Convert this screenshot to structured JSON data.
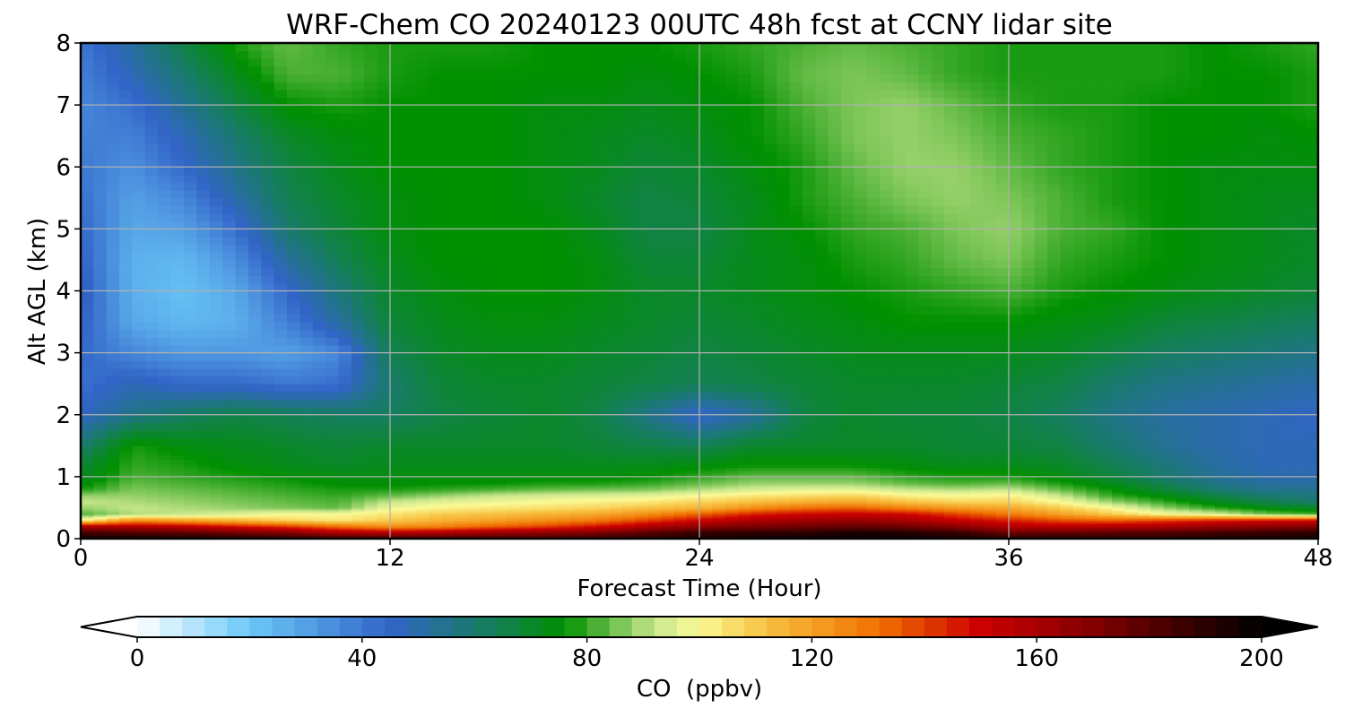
{
  "chart_data": {
    "type": "heatmap",
    "plot_kind": "filled-contour",
    "title": "WRF-Chem CO  20240123 00UTC 48h fcst at CCNY lidar site",
    "xlabel": "Forecast Time (Hour)",
    "ylabel": "Alt AGL (km)",
    "xlim": [
      0,
      48
    ],
    "ylim": [
      0,
      8
    ],
    "xticks": [
      0,
      12,
      24,
      36,
      48
    ],
    "yticks": [
      0,
      1,
      2,
      3,
      4,
      5,
      6,
      7,
      8
    ],
    "grid": true,
    "colorbar": {
      "label": "CO  (ppbv)",
      "orientation": "horizontal",
      "min": 0,
      "max": 200,
      "ticks": [
        0,
        40,
        80,
        120,
        160,
        200
      ],
      "extend": "both",
      "stops": [
        {
          "v": 0,
          "c": "#ffffff"
        },
        {
          "v": 20,
          "c": "#6ac8f8"
        },
        {
          "v": 45,
          "c": "#3264c8"
        },
        {
          "v": 60,
          "c": "#1a7a6e"
        },
        {
          "v": 76,
          "c": "#009000"
        },
        {
          "v": 92,
          "c": "#c8e68c"
        },
        {
          "v": 100,
          "c": "#fafa96"
        },
        {
          "v": 112,
          "c": "#f8c040"
        },
        {
          "v": 132,
          "c": "#f07000"
        },
        {
          "v": 150,
          "c": "#cc0000"
        },
        {
          "v": 170,
          "c": "#820000"
        },
        {
          "v": 200,
          "c": "#000000"
        }
      ]
    },
    "x": [
      0,
      2,
      4,
      6,
      8,
      10,
      12,
      14,
      16,
      18,
      20,
      22,
      24,
      26,
      28,
      30,
      32,
      34,
      36,
      38,
      40,
      42,
      44,
      46,
      48
    ],
    "y": [
      0,
      0.1,
      0.2,
      0.3,
      0.4,
      0.5,
      0.6,
      0.7,
      0.8,
      0.9,
      1.0,
      1.2,
      1.5,
      2.0,
      2.5,
      3.0,
      3.5,
      4.0,
      4.5,
      5.0,
      5.5,
      6.0,
      6.5,
      7.0,
      7.5,
      8.0
    ],
    "values": [
      [
        198,
        198,
        196,
        195,
        193,
        190,
        188,
        186,
        186,
        186,
        188,
        192,
        194,
        196,
        198,
        199,
        198,
        196,
        194,
        193,
        192,
        193,
        194,
        195,
        196
      ],
      [
        185,
        182,
        180,
        175,
        170,
        160,
        158,
        160,
        165,
        168,
        172,
        180,
        188,
        190,
        190,
        195,
        192,
        188,
        176,
        178,
        180,
        182,
        185,
        188,
        190
      ],
      [
        160,
        158,
        155,
        148,
        142,
        132,
        125,
        128,
        135,
        140,
        148,
        158,
        168,
        172,
        175,
        178,
        175,
        168,
        158,
        155,
        158,
        160,
        165,
        168,
        170
      ],
      [
        100,
        125,
        120,
        115,
        108,
        104,
        110,
        116,
        120,
        125,
        130,
        140,
        150,
        158,
        162,
        165,
        160,
        152,
        145,
        138,
        135,
        140,
        145,
        148,
        150
      ],
      [
        82,
        90,
        92,
        95,
        100,
        100,
        105,
        110,
        112,
        115,
        118,
        125,
        135,
        145,
        150,
        152,
        150,
        140,
        130,
        120,
        110,
        100,
        95,
        85,
        82
      ],
      [
        88,
        92,
        90,
        88,
        86,
        84,
        98,
        102,
        104,
        106,
        108,
        112,
        115,
        125,
        132,
        135,
        128,
        122,
        118,
        110,
        100,
        88,
        80,
        74,
        70
      ],
      [
        92,
        90,
        88,
        86,
        84,
        82,
        92,
        96,
        98,
        100,
        102,
        104,
        108,
        112,
        116,
        118,
        112,
        108,
        108,
        100,
        88,
        80,
        72,
        65,
        60
      ],
      [
        88,
        88,
        86,
        84,
        82,
        80,
        84,
        88,
        92,
        94,
        95,
        96,
        100,
        104,
        106,
        108,
        102,
        100,
        102,
        92,
        80,
        74,
        66,
        60,
        58
      ],
      [
        78,
        86,
        84,
        82,
        80,
        78,
        78,
        80,
        82,
        84,
        85,
        86,
        90,
        94,
        96,
        96,
        92,
        90,
        92,
        84,
        76,
        68,
        60,
        55,
        55
      ],
      [
        74,
        84,
        82,
        80,
        78,
        75,
        75,
        76,
        76,
        78,
        78,
        80,
        84,
        88,
        88,
        88,
        84,
        82,
        84,
        78,
        72,
        64,
        56,
        52,
        52
      ],
      [
        70,
        82,
        80,
        78,
        76,
        74,
        74,
        74,
        74,
        75,
        75,
        76,
        80,
        84,
        84,
        84,
        80,
        78,
        78,
        74,
        68,
        60,
        54,
        50,
        50
      ],
      [
        68,
        80,
        78,
        74,
        72,
        70,
        72,
        72,
        72,
        72,
        72,
        72,
        74,
        76,
        76,
        76,
        74,
        72,
        72,
        70,
        64,
        58,
        52,
        48,
        48
      ],
      [
        60,
        78,
        74,
        72,
        70,
        68,
        70,
        70,
        70,
        70,
        68,
        66,
        64,
        70,
        70,
        70,
        70,
        68,
        68,
        66,
        60,
        54,
        50,
        48,
        48
      ],
      [
        46,
        56,
        62,
        66,
        64,
        62,
        62,
        66,
        68,
        70,
        66,
        56,
        44,
        52,
        66,
        70,
        68,
        68,
        66,
        62,
        56,
        52,
        50,
        48,
        46
      ],
      [
        42,
        48,
        44,
        44,
        40,
        42,
        60,
        68,
        70,
        70,
        68,
        66,
        64,
        66,
        68,
        70,
        70,
        70,
        68,
        66,
        60,
        56,
        54,
        52,
        50
      ],
      [
        44,
        36,
        32,
        32,
        30,
        36,
        64,
        70,
        72,
        72,
        70,
        68,
        66,
        68,
        70,
        72,
        72,
        72,
        72,
        70,
        66,
        62,
        60,
        58,
        56
      ],
      [
        46,
        28,
        24,
        26,
        38,
        52,
        68,
        72,
        74,
        74,
        72,
        70,
        68,
        70,
        72,
        74,
        76,
        76,
        76,
        74,
        72,
        68,
        66,
        64,
        62
      ],
      [
        48,
        26,
        22,
        28,
        44,
        58,
        70,
        74,
        76,
        76,
        74,
        70,
        70,
        72,
        74,
        76,
        78,
        80,
        82,
        78,
        76,
        74,
        72,
        70,
        68
      ],
      [
        46,
        26,
        24,
        34,
        52,
        64,
        72,
        76,
        76,
        76,
        74,
        68,
        68,
        72,
        74,
        78,
        80,
        84,
        86,
        80,
        78,
        76,
        74,
        72,
        70
      ],
      [
        44,
        28,
        30,
        42,
        60,
        68,
        74,
        76,
        76,
        76,
        72,
        66,
        66,
        72,
        76,
        80,
        82,
        86,
        88,
        82,
        80,
        76,
        74,
        72,
        70
      ],
      [
        42,
        30,
        36,
        50,
        64,
        70,
        74,
        76,
        76,
        74,
        70,
        66,
        68,
        72,
        78,
        82,
        86,
        88,
        86,
        82,
        78,
        76,
        74,
        72,
        72
      ],
      [
        40,
        34,
        44,
        56,
        66,
        72,
        76,
        76,
        76,
        74,
        72,
        68,
        70,
        74,
        78,
        84,
        88,
        88,
        84,
        80,
        78,
        76,
        74,
        74,
        74
      ],
      [
        38,
        38,
        48,
        60,
        70,
        74,
        76,
        76,
        76,
        74,
        72,
        70,
        72,
        76,
        80,
        86,
        88,
        86,
        82,
        80,
        78,
        76,
        76,
        74,
        76
      ],
      [
        36,
        42,
        54,
        66,
        76,
        78,
        76,
        76,
        76,
        74,
        74,
        72,
        74,
        76,
        82,
        86,
        88,
        84,
        80,
        78,
        78,
        76,
        76,
        76,
        78
      ],
      [
        38,
        48,
        60,
        72,
        82,
        82,
        78,
        76,
        76,
        76,
        76,
        74,
        76,
        78,
        84,
        86,
        84,
        80,
        78,
        78,
        78,
        78,
        76,
        76,
        78
      ],
      [
        40,
        52,
        66,
        78,
        84,
        80,
        78,
        78,
        78,
        76,
        76,
        76,
        78,
        80,
        82,
        84,
        82,
        80,
        78,
        78,
        78,
        78,
        76,
        78,
        80
      ]
    ]
  }
}
